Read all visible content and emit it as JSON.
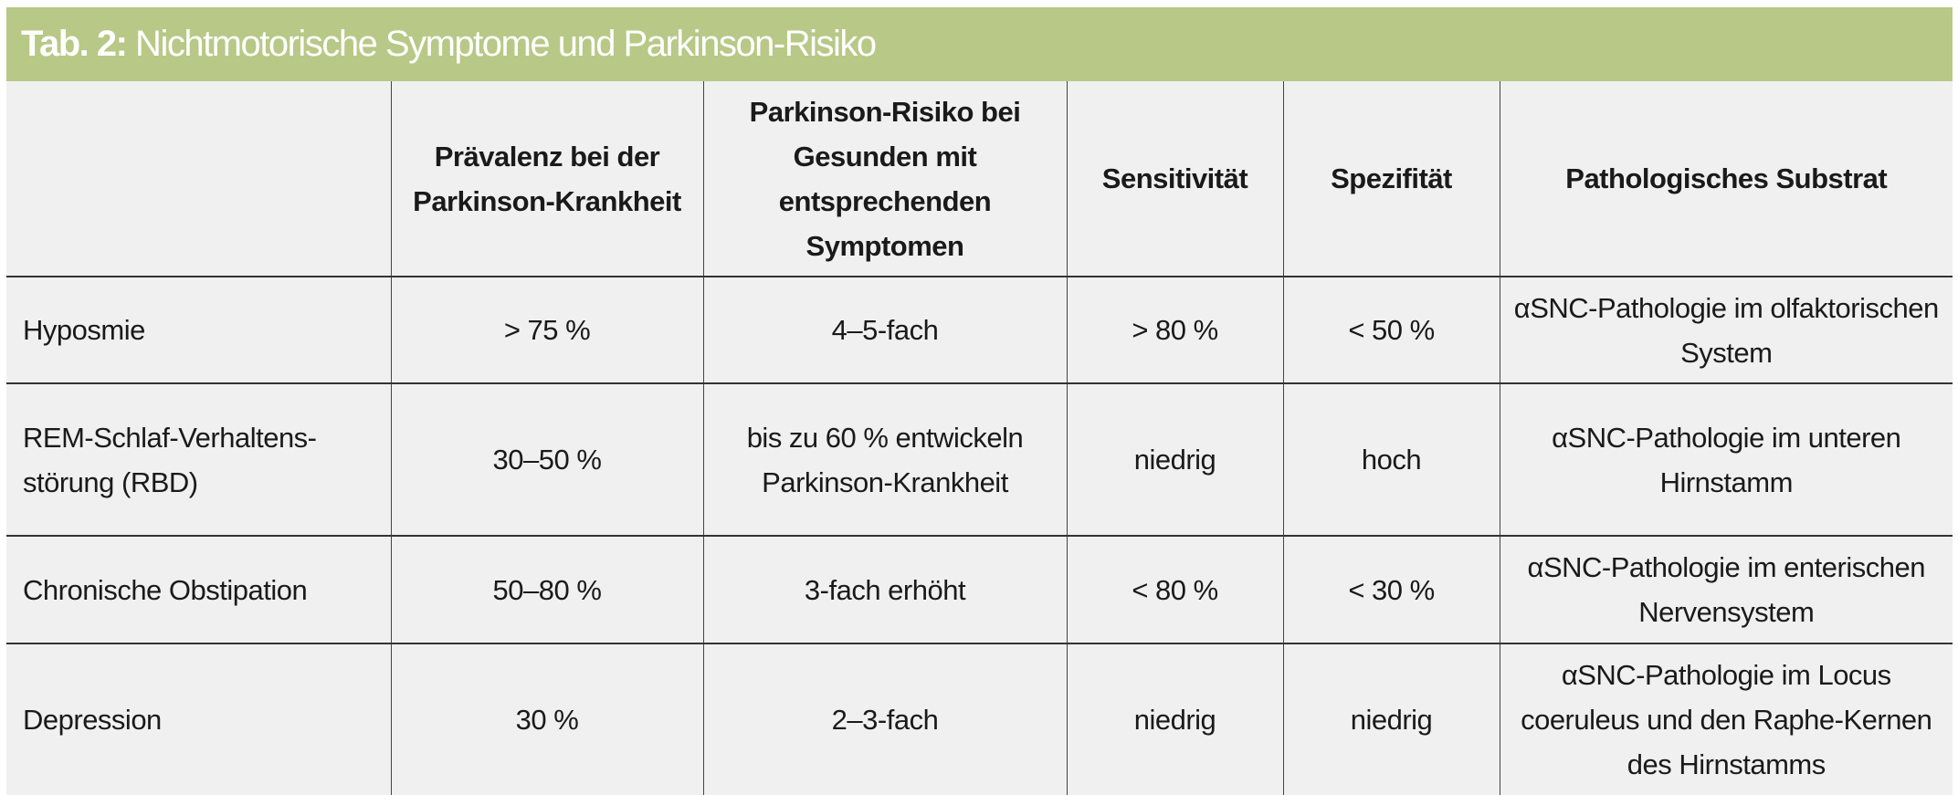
{
  "title": {
    "prefix": "Tab. 2:",
    "text": " Nichtmotorische Symptome und Parkinson-Risiko"
  },
  "colors": {
    "title_bar": "#b8c886",
    "cell_background": "#f0f0f0"
  },
  "columns": [
    "",
    "Prävalenz bei der Parkinson-Krankheit",
    "Parkinson-Risiko bei Gesunden mit entsprechenden Symptomen",
    "Sensitivität",
    "Spezifität",
    "Pathologisches Substrat"
  ],
  "rows": [
    [
      "Hyposmie",
      "> 75 %",
      "4–5-fach",
      "> 80 %",
      "< 50 %",
      "αSNC-Pathologie im olfaktorischen System"
    ],
    [
      "REM-Schlaf-Verhaltens-störung (RBD)",
      "30–50 %",
      "bis zu 60 % entwickeln Parkinson-Krankheit",
      "niedrig",
      "hoch",
      "αSNC-Pathologie im unteren Hirnstamm"
    ],
    [
      "Chronische Obstipation",
      "50–80 %",
      "3-fach erhöht",
      "< 80 %",
      "< 30 %",
      "αSNC-Pathologie im enterischen Nervensystem"
    ],
    [
      "Depression",
      "30 %",
      "2–3-fach",
      "niedrig",
      "niedrig",
      "αSNC-Pathologie im Locus coeruleus und den Raphe-Kernen des Hirnstamms"
    ]
  ]
}
